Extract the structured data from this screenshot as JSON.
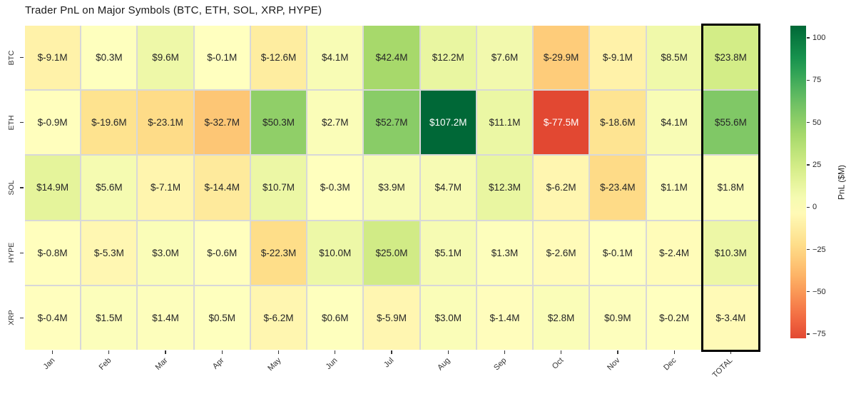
{
  "page": {
    "background": "#ffffff"
  },
  "chart_data": {
    "type": "heatmap",
    "title": "Trader PnL on Major Symbols (BTC, ETH, SOL, XRP, HYPE)",
    "unit": "$M",
    "x_categories": [
      "Jan",
      "Feb",
      "Mar",
      "Apr",
      "May",
      "Jun",
      "Jul",
      "Aug",
      "Sep",
      "Oct",
      "Nov",
      "Dec",
      "TOTAL"
    ],
    "y_categories": [
      "BTC",
      "ETH",
      "SOL",
      "HYPE",
      "XRP"
    ],
    "series": [
      {
        "name": "BTC",
        "values": [
          -9.1,
          0.3,
          9.6,
          -0.1,
          -12.6,
          4.1,
          42.4,
          12.2,
          7.6,
          -29.9,
          -9.1,
          8.5,
          23.8
        ],
        "labels": [
          "$-9.1M",
          "$0.3M",
          "$9.6M",
          "$-0.1M",
          "$-12.6M",
          "$4.1M",
          "$42.4M",
          "$12.2M",
          "$7.6M",
          "$-29.9M",
          "$-9.1M",
          "$8.5M",
          "$23.8M"
        ]
      },
      {
        "name": "ETH",
        "values": [
          -0.9,
          -19.6,
          -23.1,
          -32.7,
          50.3,
          2.7,
          52.7,
          107.2,
          11.1,
          -77.5,
          -18.6,
          4.1,
          55.6
        ],
        "labels": [
          "$-0.9M",
          "$-19.6M",
          "$-23.1M",
          "$-32.7M",
          "$50.3M",
          "$2.7M",
          "$52.7M",
          "$107.2M",
          "$11.1M",
          "$-77.5M",
          "$-18.6M",
          "$4.1M",
          "$55.6M"
        ]
      },
      {
        "name": "SOL",
        "values": [
          14.9,
          5.6,
          -7.1,
          -14.4,
          10.7,
          -0.3,
          3.9,
          4.7,
          12.3,
          -6.2,
          -23.4,
          1.1,
          1.8
        ],
        "labels": [
          "$14.9M",
          "$5.6M",
          "$-7.1M",
          "$-14.4M",
          "$10.7M",
          "$-0.3M",
          "$3.9M",
          "$4.7M",
          "$12.3M",
          "$-6.2M",
          "$-23.4M",
          "$1.1M",
          "$1.8M"
        ]
      },
      {
        "name": "HYPE",
        "values": [
          -0.8,
          -5.3,
          3.0,
          -0.6,
          -22.3,
          10.0,
          25.0,
          5.1,
          1.3,
          -2.6,
          -0.1,
          -2.4,
          10.3
        ],
        "labels": [
          "$-0.8M",
          "$-5.3M",
          "$3.0M",
          "$-0.6M",
          "$-22.3M",
          "$10.0M",
          "$25.0M",
          "$5.1M",
          "$1.3M",
          "$-2.6M",
          "$-0.1M",
          "$-2.4M",
          "$10.3M"
        ]
      },
      {
        "name": "XRP",
        "values": [
          -0.4,
          1.5,
          1.4,
          0.5,
          -6.2,
          0.6,
          -5.9,
          3.0,
          -1.4,
          2.8,
          0.9,
          -0.2,
          -3.4
        ],
        "labels": [
          "$-0.4M",
          "$1.5M",
          "$1.4M",
          "$0.5M",
          "$-6.2M",
          "$0.6M",
          "$-5.9M",
          "$3.0M",
          "$-1.4M",
          "$2.8M",
          "$0.9M",
          "$-0.2M",
          "$-3.4M"
        ]
      }
    ],
    "highlight_column": "TOTAL",
    "colorbar": {
      "label": "PnL ($M)",
      "vmin": -77.5,
      "vmax": 107.2,
      "center": 0,
      "ticks": [
        {
          "label": "100",
          "value": 100
        },
        {
          "label": "75",
          "value": 75
        },
        {
          "label": "50",
          "value": 50
        },
        {
          "label": "25",
          "value": 25
        },
        {
          "label": "0",
          "value": 0
        },
        {
          "label": "−25",
          "value": -25
        },
        {
          "label": "−50",
          "value": -50
        },
        {
          "label": "−75",
          "value": -75
        }
      ]
    },
    "colormap": {
      "name": "RdYlGn",
      "stops": [
        "#a50026",
        "#d73027",
        "#f46d43",
        "#fdae61",
        "#fee08b",
        "#ffffbf",
        "#d9ef8b",
        "#a6d96a",
        "#66bd63",
        "#1a9850",
        "#006837"
      ]
    },
    "colors": {
      "grid_line": "#d8d8d8",
      "cell_text_dark": "#262626",
      "cell_text_light": "#ffffff",
      "highlight_border": "#000000",
      "tick_color": "#333333",
      "title_color": "#1a1a1a"
    },
    "legend_position": "right",
    "grid": false
  }
}
